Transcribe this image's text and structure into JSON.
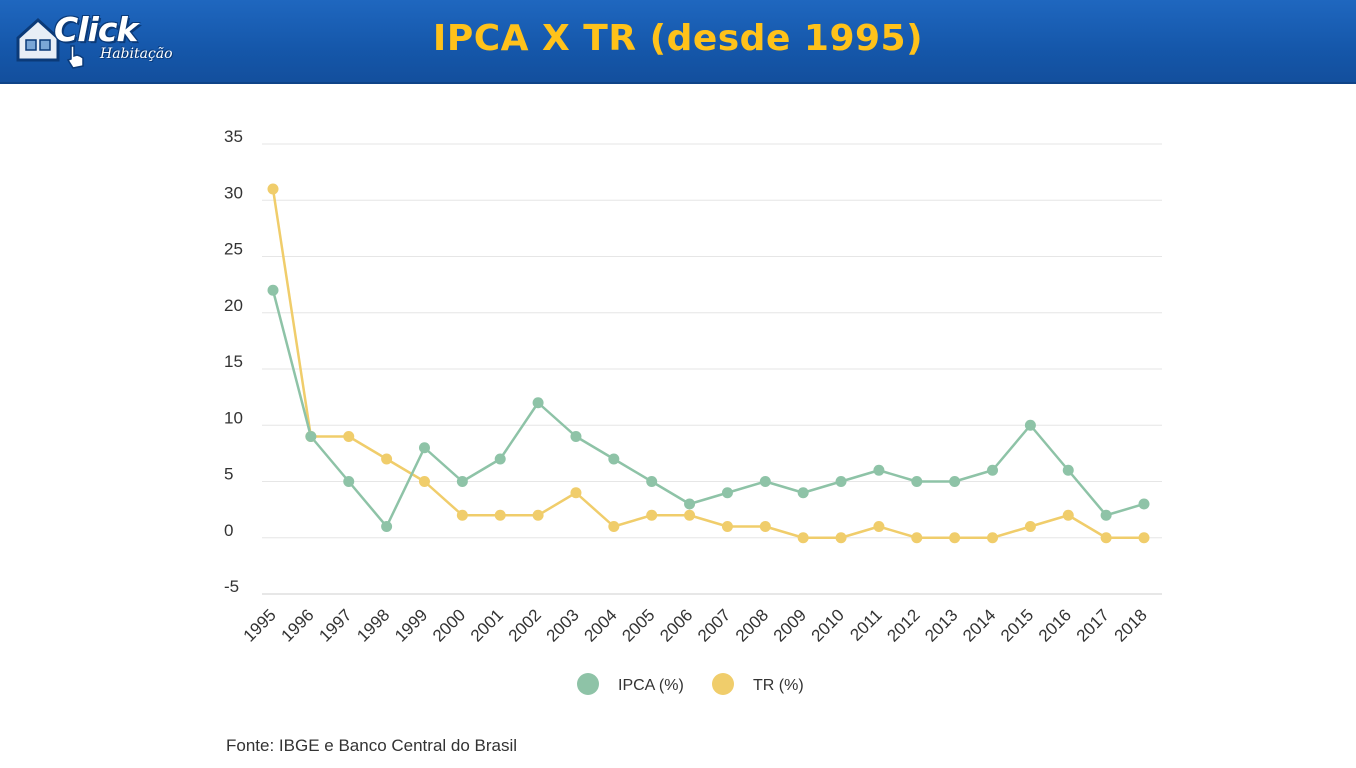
{
  "header": {
    "title": "IPCA X TR (desde 1995)",
    "logo_word": "Click",
    "logo_sub": "Habitação"
  },
  "colors": {
    "banner": "#1557aa",
    "title": "#ffc21a",
    "ipca": "#8ec3a7",
    "tr": "#f0cd6b",
    "grid": "#e6e6e6"
  },
  "chart_data": {
    "type": "line",
    "title": "IPCA X TR (desde 1995)",
    "xlabel": "",
    "ylabel": "",
    "ylim": [
      -5,
      35
    ],
    "yticks": [
      35,
      30,
      25,
      20,
      15,
      10,
      5,
      0,
      -5
    ],
    "categories": [
      "1995",
      "1996",
      "1997",
      "1998",
      "1999",
      "2000",
      "2001",
      "2002",
      "2003",
      "2004",
      "2005",
      "2006",
      "2007",
      "2008",
      "2009",
      "2010",
      "2011",
      "2012",
      "2013",
      "2014",
      "2015",
      "2016",
      "2017",
      "2018"
    ],
    "series": [
      {
        "name": "IPCA (%)",
        "color": "#8ec3a7",
        "values": [
          22,
          9,
          5,
          1,
          8,
          5,
          7,
          12,
          9,
          7,
          5,
          3,
          4,
          5,
          4,
          5,
          6,
          5,
          5,
          6,
          10,
          6,
          2,
          3
        ]
      },
      {
        "name": "TR (%)",
        "color": "#f0cd6b",
        "values": [
          31,
          9,
          9,
          7,
          5,
          2,
          2,
          2,
          4,
          1,
          2,
          2,
          1,
          1,
          0,
          0,
          1,
          0,
          0,
          0,
          1,
          2,
          0,
          0
        ]
      }
    ],
    "legend": "bottom-center",
    "grid": true
  },
  "footer": {
    "source": "Fonte: IBGE e Banco Central do Brasil"
  }
}
